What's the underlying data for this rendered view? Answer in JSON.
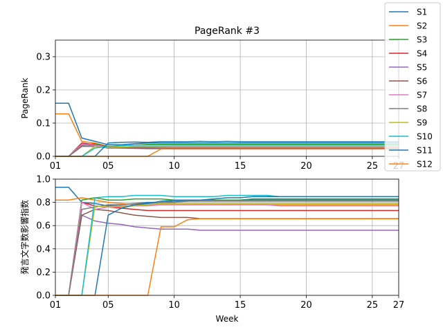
{
  "chart_data": [
    {
      "type": "line",
      "title": "PageRank #3",
      "xlabel": "",
      "ylabel": "PageRank",
      "xlim": [
        1,
        27
      ],
      "ylim": [
        0,
        0.35
      ],
      "yticks": [
        "0.0",
        "0.1",
        "0.2",
        "0.3"
      ],
      "xticks": [
        {
          "x": 1,
          "label": "01"
        },
        {
          "x": 5,
          "label": "05"
        },
        {
          "x": 10,
          "label": "10"
        },
        {
          "x": 15,
          "label": "15"
        },
        {
          "x": 20,
          "label": "20"
        },
        {
          "x": 25,
          "label": "25"
        },
        {
          "x": 27,
          "label": "27"
        }
      ],
      "grid": true,
      "legend": "top-right",
      "x": [
        1,
        2,
        3,
        4,
        5,
        6,
        7,
        8,
        9,
        10,
        11,
        12,
        13,
        14,
        15,
        16,
        17,
        18,
        19,
        20,
        21,
        22,
        23,
        24,
        25,
        26,
        27
      ],
      "series": [
        {
          "name": "S1",
          "color": "#1f77b4",
          "values": [
            0.16,
            0.16,
            0.055,
            0.045,
            0.035,
            0.035,
            0.038,
            0.04,
            0.04,
            0.04,
            0.04,
            0.04,
            0.04,
            0.04,
            0.04,
            0.04,
            0.04,
            0.04,
            0.04,
            0.04,
            0.04,
            0.04,
            0.04,
            0.04,
            0.04,
            0.04,
            0.04
          ]
        },
        {
          "name": "S2",
          "color": "#ff7f0e",
          "values": [
            0.128,
            0.128,
            0.045,
            0.04,
            0.03,
            0.028,
            0.028,
            0.028,
            0.028,
            0.028,
            0.028,
            0.028,
            0.028,
            0.028,
            0.028,
            0.028,
            0.028,
            0.028,
            0.028,
            0.028,
            0.028,
            0.028,
            0.028,
            0.028,
            0.028,
            0.028,
            0.028
          ]
        },
        {
          "name": "S3",
          "color": "#2ca02c",
          "values": [
            0,
            0,
            0.035,
            0.038,
            0.03,
            0.032,
            0.034,
            0.036,
            0.036,
            0.036,
            0.036,
            0.036,
            0.036,
            0.036,
            0.036,
            0.036,
            0.036,
            0.036,
            0.036,
            0.036,
            0.036,
            0.036,
            0.036,
            0.036,
            0.036,
            0.036,
            0.036
          ]
        },
        {
          "name": "S4",
          "color": "#d62728",
          "values": [
            0,
            0,
            0.04,
            0.035,
            0.028,
            0.027,
            0.026,
            0.026,
            0.026,
            0.026,
            0.026,
            0.026,
            0.026,
            0.026,
            0.026,
            0.026,
            0.026,
            0.026,
            0.026,
            0.026,
            0.026,
            0.026,
            0.026,
            0.026,
            0.026,
            0.026,
            0.026
          ]
        },
        {
          "name": "S5",
          "color": "#9467bd",
          "values": [
            0,
            0,
            0.036,
            0.032,
            0.026,
            0.025,
            0.024,
            0.023,
            0.023,
            0.022,
            0.022,
            0.022,
            0.022,
            0.022,
            0.022,
            0.022,
            0.022,
            0.022,
            0.022,
            0.022,
            0.022,
            0.022,
            0.022,
            0.022,
            0.022,
            0.022,
            0.022
          ]
        },
        {
          "name": "S6",
          "color": "#8c564b",
          "values": [
            0,
            0,
            0.03,
            0.03,
            0.025,
            0.025,
            0.025,
            0.025,
            0.025,
            0.024,
            0.024,
            0.024,
            0.024,
            0.024,
            0.024,
            0.024,
            0.024,
            0.024,
            0.024,
            0.024,
            0.024,
            0.024,
            0.024,
            0.024,
            0.024,
            0.024,
            0.024
          ]
        },
        {
          "name": "S7",
          "color": "#e377c2",
          "values": [
            0,
            0,
            0.036,
            0.034,
            0.027,
            0.027,
            0.027,
            0.027,
            0.027,
            0.027,
            0.027,
            0.027,
            0.027,
            0.027,
            0.027,
            0.027,
            0.027,
            0.027,
            0.027,
            0.027,
            0.027,
            0.027,
            0.027,
            0.027,
            0.027,
            0.027,
            0.027
          ]
        },
        {
          "name": "S8",
          "color": "#7f7f7f",
          "values": [
            0,
            0,
            0.032,
            0.03,
            0.026,
            0.026,
            0.027,
            0.028,
            0.029,
            0.03,
            0.03,
            0.03,
            0.03,
            0.03,
            0.03,
            0.03,
            0.03,
            0.03,
            0.03,
            0.03,
            0.03,
            0.03,
            0.03,
            0.03,
            0.03,
            0.03,
            0.03
          ]
        },
        {
          "name": "S9",
          "color": "#bcbd22",
          "values": [
            0,
            0,
            0,
            0.03,
            0.027,
            0.028,
            0.03,
            0.03,
            0.03,
            0.03,
            0.03,
            0.03,
            0.03,
            0.03,
            0.03,
            0.03,
            0.03,
            0.03,
            0.03,
            0.03,
            0.03,
            0.03,
            0.03,
            0.03,
            0.03,
            0.03,
            0.03
          ]
        },
        {
          "name": "S10",
          "color": "#17becf",
          "values": [
            0,
            0,
            0,
            0.025,
            0.03,
            0.032,
            0.034,
            0.034,
            0.034,
            0.034,
            0.034,
            0.034,
            0.034,
            0.034,
            0.034,
            0.034,
            0.034,
            0.034,
            0.034,
            0.034,
            0.034,
            0.034,
            0.034,
            0.034,
            0.034,
            0.034,
            0.034
          ]
        },
        {
          "name": "S11",
          "color": "#1f77b4",
          "values": [
            0,
            0,
            0,
            0,
            0.04,
            0.042,
            0.043,
            0.042,
            0.044,
            0.044,
            0.044,
            0.045,
            0.044,
            0.045,
            0.044,
            0.044,
            0.044,
            0.044,
            0.044,
            0.044,
            0.044,
            0.044,
            0.044,
            0.044,
            0.044,
            0.044,
            0.044
          ]
        },
        {
          "name": "S12",
          "color": "#ff7f0e",
          "values": [
            0,
            0,
            0,
            0,
            0,
            0,
            0,
            0,
            0.022,
            0.022,
            0.022,
            0.022,
            0.022,
            0.022,
            0.022,
            0.022,
            0.022,
            0.022,
            0.022,
            0.022,
            0.022,
            0.022,
            0.022,
            0.022,
            0.022,
            0.022,
            0.022
          ]
        }
      ]
    },
    {
      "type": "line",
      "title": "",
      "xlabel": "Week",
      "ylabel": "発言文字数影響指数",
      "xlim": [
        1,
        27
      ],
      "ylim": [
        0,
        1.0
      ],
      "yticks": [
        "0.0",
        "0.2",
        "0.4",
        "0.6",
        "0.8",
        "1.0"
      ],
      "xticks": [
        {
          "x": 1,
          "label": "01"
        },
        {
          "x": 5,
          "label": "05"
        },
        {
          "x": 10,
          "label": "10"
        },
        {
          "x": 15,
          "label": "15"
        },
        {
          "x": 20,
          "label": "20"
        },
        {
          "x": 25,
          "label": "25"
        },
        {
          "x": 27,
          "label": "27"
        }
      ],
      "grid": true,
      "x": [
        1,
        2,
        3,
        4,
        5,
        6,
        7,
        8,
        9,
        10,
        11,
        12,
        13,
        14,
        15,
        16,
        17,
        18,
        19,
        20,
        21,
        22,
        23,
        24,
        25,
        26,
        27
      ],
      "series": [
        {
          "name": "S1",
          "color": "#1f77b4",
          "values": [
            0.93,
            0.93,
            0.8,
            0.79,
            0.77,
            0.78,
            0.79,
            0.8,
            0.8,
            0.81,
            0.81,
            0.82,
            0.82,
            0.82,
            0.82,
            0.83,
            0.83,
            0.83,
            0.83,
            0.83,
            0.83,
            0.83,
            0.83,
            0.83,
            0.83,
            0.83,
            0.83
          ]
        },
        {
          "name": "S2",
          "color": "#ff7f0e",
          "values": [
            0.82,
            0.82,
            0.84,
            0.82,
            0.8,
            0.79,
            0.78,
            0.78,
            0.78,
            0.78,
            0.78,
            0.78,
            0.78,
            0.78,
            0.78,
            0.78,
            0.78,
            0.78,
            0.78,
            0.78,
            0.78,
            0.78,
            0.78,
            0.78,
            0.78,
            0.78,
            0.78
          ]
        },
        {
          "name": "S3",
          "color": "#2ca02c",
          "values": [
            0,
            0,
            0.82,
            0.84,
            0.82,
            0.82,
            0.83,
            0.83,
            0.83,
            0.82,
            0.82,
            0.82,
            0.82,
            0.82,
            0.82,
            0.82,
            0.82,
            0.82,
            0.82,
            0.82,
            0.82,
            0.82,
            0.82,
            0.82,
            0.82,
            0.82,
            0.82
          ]
        },
        {
          "name": "S4",
          "color": "#d62728",
          "values": [
            0,
            0,
            0.8,
            0.77,
            0.76,
            0.75,
            0.74,
            0.73,
            0.73,
            0.73,
            0.73,
            0.73,
            0.73,
            0.73,
            0.73,
            0.73,
            0.73,
            0.73,
            0.73,
            0.73,
            0.73,
            0.73,
            0.73,
            0.73,
            0.73,
            0.73,
            0.73
          ]
        },
        {
          "name": "S5",
          "color": "#9467bd",
          "values": [
            0,
            0,
            0.69,
            0.64,
            0.62,
            0.61,
            0.59,
            0.58,
            0.57,
            0.57,
            0.57,
            0.56,
            0.56,
            0.56,
            0.56,
            0.56,
            0.56,
            0.56,
            0.56,
            0.56,
            0.56,
            0.56,
            0.56,
            0.56,
            0.56,
            0.56,
            0.56
          ]
        },
        {
          "name": "S6",
          "color": "#8c564b",
          "values": [
            0,
            0,
            0.69,
            0.74,
            0.73,
            0.71,
            0.69,
            0.68,
            0.67,
            0.67,
            0.67,
            0.66,
            0.66,
            0.66,
            0.66,
            0.66,
            0.66,
            0.66,
            0.66,
            0.66,
            0.66,
            0.66,
            0.66,
            0.66,
            0.66,
            0.66,
            0.66
          ]
        },
        {
          "name": "S7",
          "color": "#e377c2",
          "values": [
            0,
            0,
            0.8,
            0.74,
            0.76,
            0.77,
            0.77,
            0.77,
            0.78,
            0.78,
            0.78,
            0.78,
            0.78,
            0.78,
            0.78,
            0.78,
            0.78,
            0.77,
            0.77,
            0.77,
            0.77,
            0.77,
            0.77,
            0.77,
            0.77,
            0.77,
            0.77
          ]
        },
        {
          "name": "S8",
          "color": "#7f7f7f",
          "values": [
            0,
            0,
            0.74,
            0.76,
            0.78,
            0.78,
            0.79,
            0.79,
            0.8,
            0.8,
            0.81,
            0.81,
            0.81,
            0.81,
            0.81,
            0.81,
            0.81,
            0.81,
            0.81,
            0.81,
            0.81,
            0.81,
            0.81,
            0.81,
            0.81,
            0.81,
            0.81
          ]
        },
        {
          "name": "S9",
          "color": "#bcbd22",
          "values": [
            0,
            0,
            0,
            0.77,
            0.76,
            0.76,
            0.77,
            0.78,
            0.79,
            0.79,
            0.79,
            0.79,
            0.79,
            0.79,
            0.79,
            0.79,
            0.79,
            0.79,
            0.79,
            0.79,
            0.79,
            0.79,
            0.79,
            0.79,
            0.79,
            0.79,
            0.79
          ]
        },
        {
          "name": "S10",
          "color": "#17becf",
          "values": [
            0,
            0,
            0,
            0.84,
            0.85,
            0.85,
            0.86,
            0.86,
            0.86,
            0.85,
            0.85,
            0.85,
            0.85,
            0.86,
            0.86,
            0.86,
            0.86,
            0.85,
            0.85,
            0.85,
            0.85,
            0.85,
            0.85,
            0.85,
            0.85,
            0.85,
            0.85
          ]
        },
        {
          "name": "S11",
          "color": "#1f77b4",
          "values": [
            0,
            0,
            0,
            0,
            0.69,
            0.75,
            0.78,
            0.79,
            0.81,
            0.82,
            0.82,
            0.82,
            0.83,
            0.84,
            0.84,
            0.85,
            0.85,
            0.85,
            0.85,
            0.85,
            0.85,
            0.85,
            0.85,
            0.85,
            0.85,
            0.85,
            0.85
          ]
        },
        {
          "name": "S12",
          "color": "#ff7f0e",
          "values": [
            0,
            0,
            0,
            0,
            0,
            0,
            0,
            0,
            0.59,
            0.59,
            0.65,
            0.66,
            0.66,
            0.66,
            0.66,
            0.66,
            0.66,
            0.66,
            0.66,
            0.66,
            0.66,
            0.66,
            0.66,
            0.66,
            0.66,
            0.66,
            0.66
          ]
        }
      ]
    }
  ]
}
